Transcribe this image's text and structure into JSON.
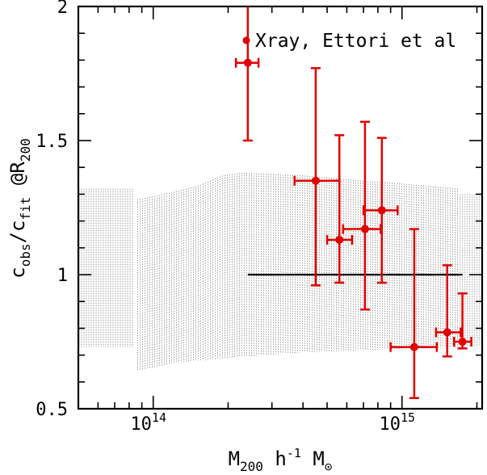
{
  "chart_data": {
    "type": "scatter",
    "xscale": "log",
    "xlim": [
      50000000000000.0,
      2100000000000000.0
    ],
    "ylim": [
      0.5,
      2.0
    ],
    "xlabel": {
      "main": "M",
      "sub": "200",
      "mid": " h",
      "sup": "-1",
      "tail": " M",
      "sun": "⊙"
    },
    "ylabel": {
      "c1": "c",
      "s1": "obs",
      "slash": "/c",
      "s2": "fit",
      "at": " @R",
      "s3": "200"
    },
    "x_ticks": [
      {
        "value": 100000000000000.0,
        "base": "10",
        "exp": "14"
      },
      {
        "value": 1000000000000000.0,
        "base": "10",
        "exp": "15"
      }
    ],
    "y_ticks": [
      {
        "value": 0.5,
        "label": "0.5"
      },
      {
        "value": 1.0,
        "label": "1"
      },
      {
        "value": 1.5,
        "label": "1.5"
      },
      {
        "value": 2.0,
        "label": "2"
      }
    ],
    "reference_line": {
      "y": 1.0,
      "x_from": 240000000000000.0,
      "x_to": 1750000000000000.0
    },
    "band_segments": [
      {
        "x0": 50000000000000.0,
        "x1": 84000000000000.0,
        "lower": 0.73,
        "upper": 1.32
      },
      {
        "x0": 86000000000000.0,
        "x1": 1700000000000000.0,
        "lower_pts": [
          [
            86000000000000.0,
            0.64
          ],
          [
            120000000000000.0,
            0.67
          ],
          [
            200000000000000.0,
            0.69
          ],
          [
            400000000000000.0,
            0.71
          ],
          [
            800000000000000.0,
            0.72
          ],
          [
            1700000000000000.0,
            0.73
          ]
        ],
        "upper_pts": [
          [
            86000000000000.0,
            1.28
          ],
          [
            110000000000000.0,
            1.3
          ],
          [
            150000000000000.0,
            1.33
          ],
          [
            190000000000000.0,
            1.37
          ],
          [
            230000000000000.0,
            1.38
          ],
          [
            400000000000000.0,
            1.37
          ],
          [
            700000000000000.0,
            1.35
          ],
          [
            1000000000000000.0,
            1.34
          ],
          [
            1700000000000000.0,
            1.32
          ]
        ]
      },
      {
        "x0": 1700000000000000.0,
        "x1": 2100000000000000.0,
        "lower": 0.73,
        "upper": 1.3
      }
    ],
    "series": [
      {
        "name": "Xray, Ettori et al",
        "color": "#e00000",
        "points": [
          {
            "x": 240000000000000.0,
            "y": 1.79,
            "xerr": [
              215000000000000.0,
              265000000000000.0
            ],
            "yerr": [
              1.5,
              2.0
            ]
          },
          {
            "x": 450000000000000.0,
            "y": 1.35,
            "xerr": [
              370000000000000.0,
              560000000000000.0
            ],
            "yerr": [
              0.96,
              1.77
            ]
          },
          {
            "x": 560000000000000.0,
            "y": 1.13,
            "xerr": [
              500000000000000.0,
              630000000000000.0
            ],
            "yerr": [
              0.97,
              1.52
            ]
          },
          {
            "x": 710000000000000.0,
            "y": 1.17,
            "xerr": [
              580000000000000.0,
              820000000000000.0
            ],
            "yerr": [
              0.87,
              1.57
            ]
          },
          {
            "x": 830000000000000.0,
            "y": 1.24,
            "xerr": [
              700000000000000.0,
              960000000000000.0
            ],
            "yerr": [
              0.97,
              1.51
            ]
          },
          {
            "x": 1120000000000000.0,
            "y": 0.73,
            "xerr": [
              900000000000000.0,
              1380000000000000.0
            ],
            "yerr": [
              0.54,
              1.17
            ]
          },
          {
            "x": 1520000000000000.0,
            "y": 0.785,
            "xerr": [
              1370000000000000.0,
              1720000000000000.0
            ],
            "yerr": [
              0.695,
              1.035
            ]
          },
          {
            "x": 1750000000000000.0,
            "y": 0.75,
            "xerr": [
              1620000000000000.0,
              1900000000000000.0
            ],
            "yerr": [
              0.725,
              0.93
            ]
          }
        ]
      }
    ],
    "legend": {
      "position": "top-right",
      "label": "Xray, Ettori et al"
    },
    "grid": false
  }
}
